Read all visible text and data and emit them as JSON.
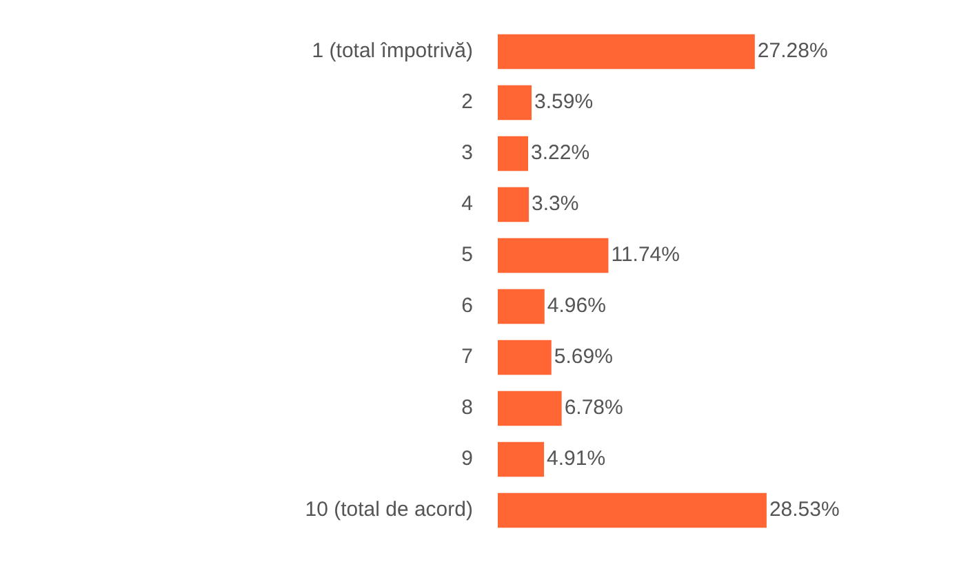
{
  "chart_data": {
    "type": "bar",
    "orientation": "horizontal",
    "categories": [
      "1 (total împotrivă)",
      "2",
      "3",
      "4",
      "5",
      "6",
      "7",
      "8",
      "9",
      "10 (total de acord)"
    ],
    "values": [
      27.28,
      3.59,
      3.22,
      3.3,
      11.74,
      4.96,
      5.69,
      6.78,
      4.91,
      28.53
    ],
    "value_labels": [
      "27.28%",
      "3.59%",
      "3.22%",
      "3.3%",
      "11.74%",
      "4.96%",
      "5.69%",
      "6.78%",
      "4.91%",
      "28.53%"
    ],
    "color": "#ff6633"
  }
}
